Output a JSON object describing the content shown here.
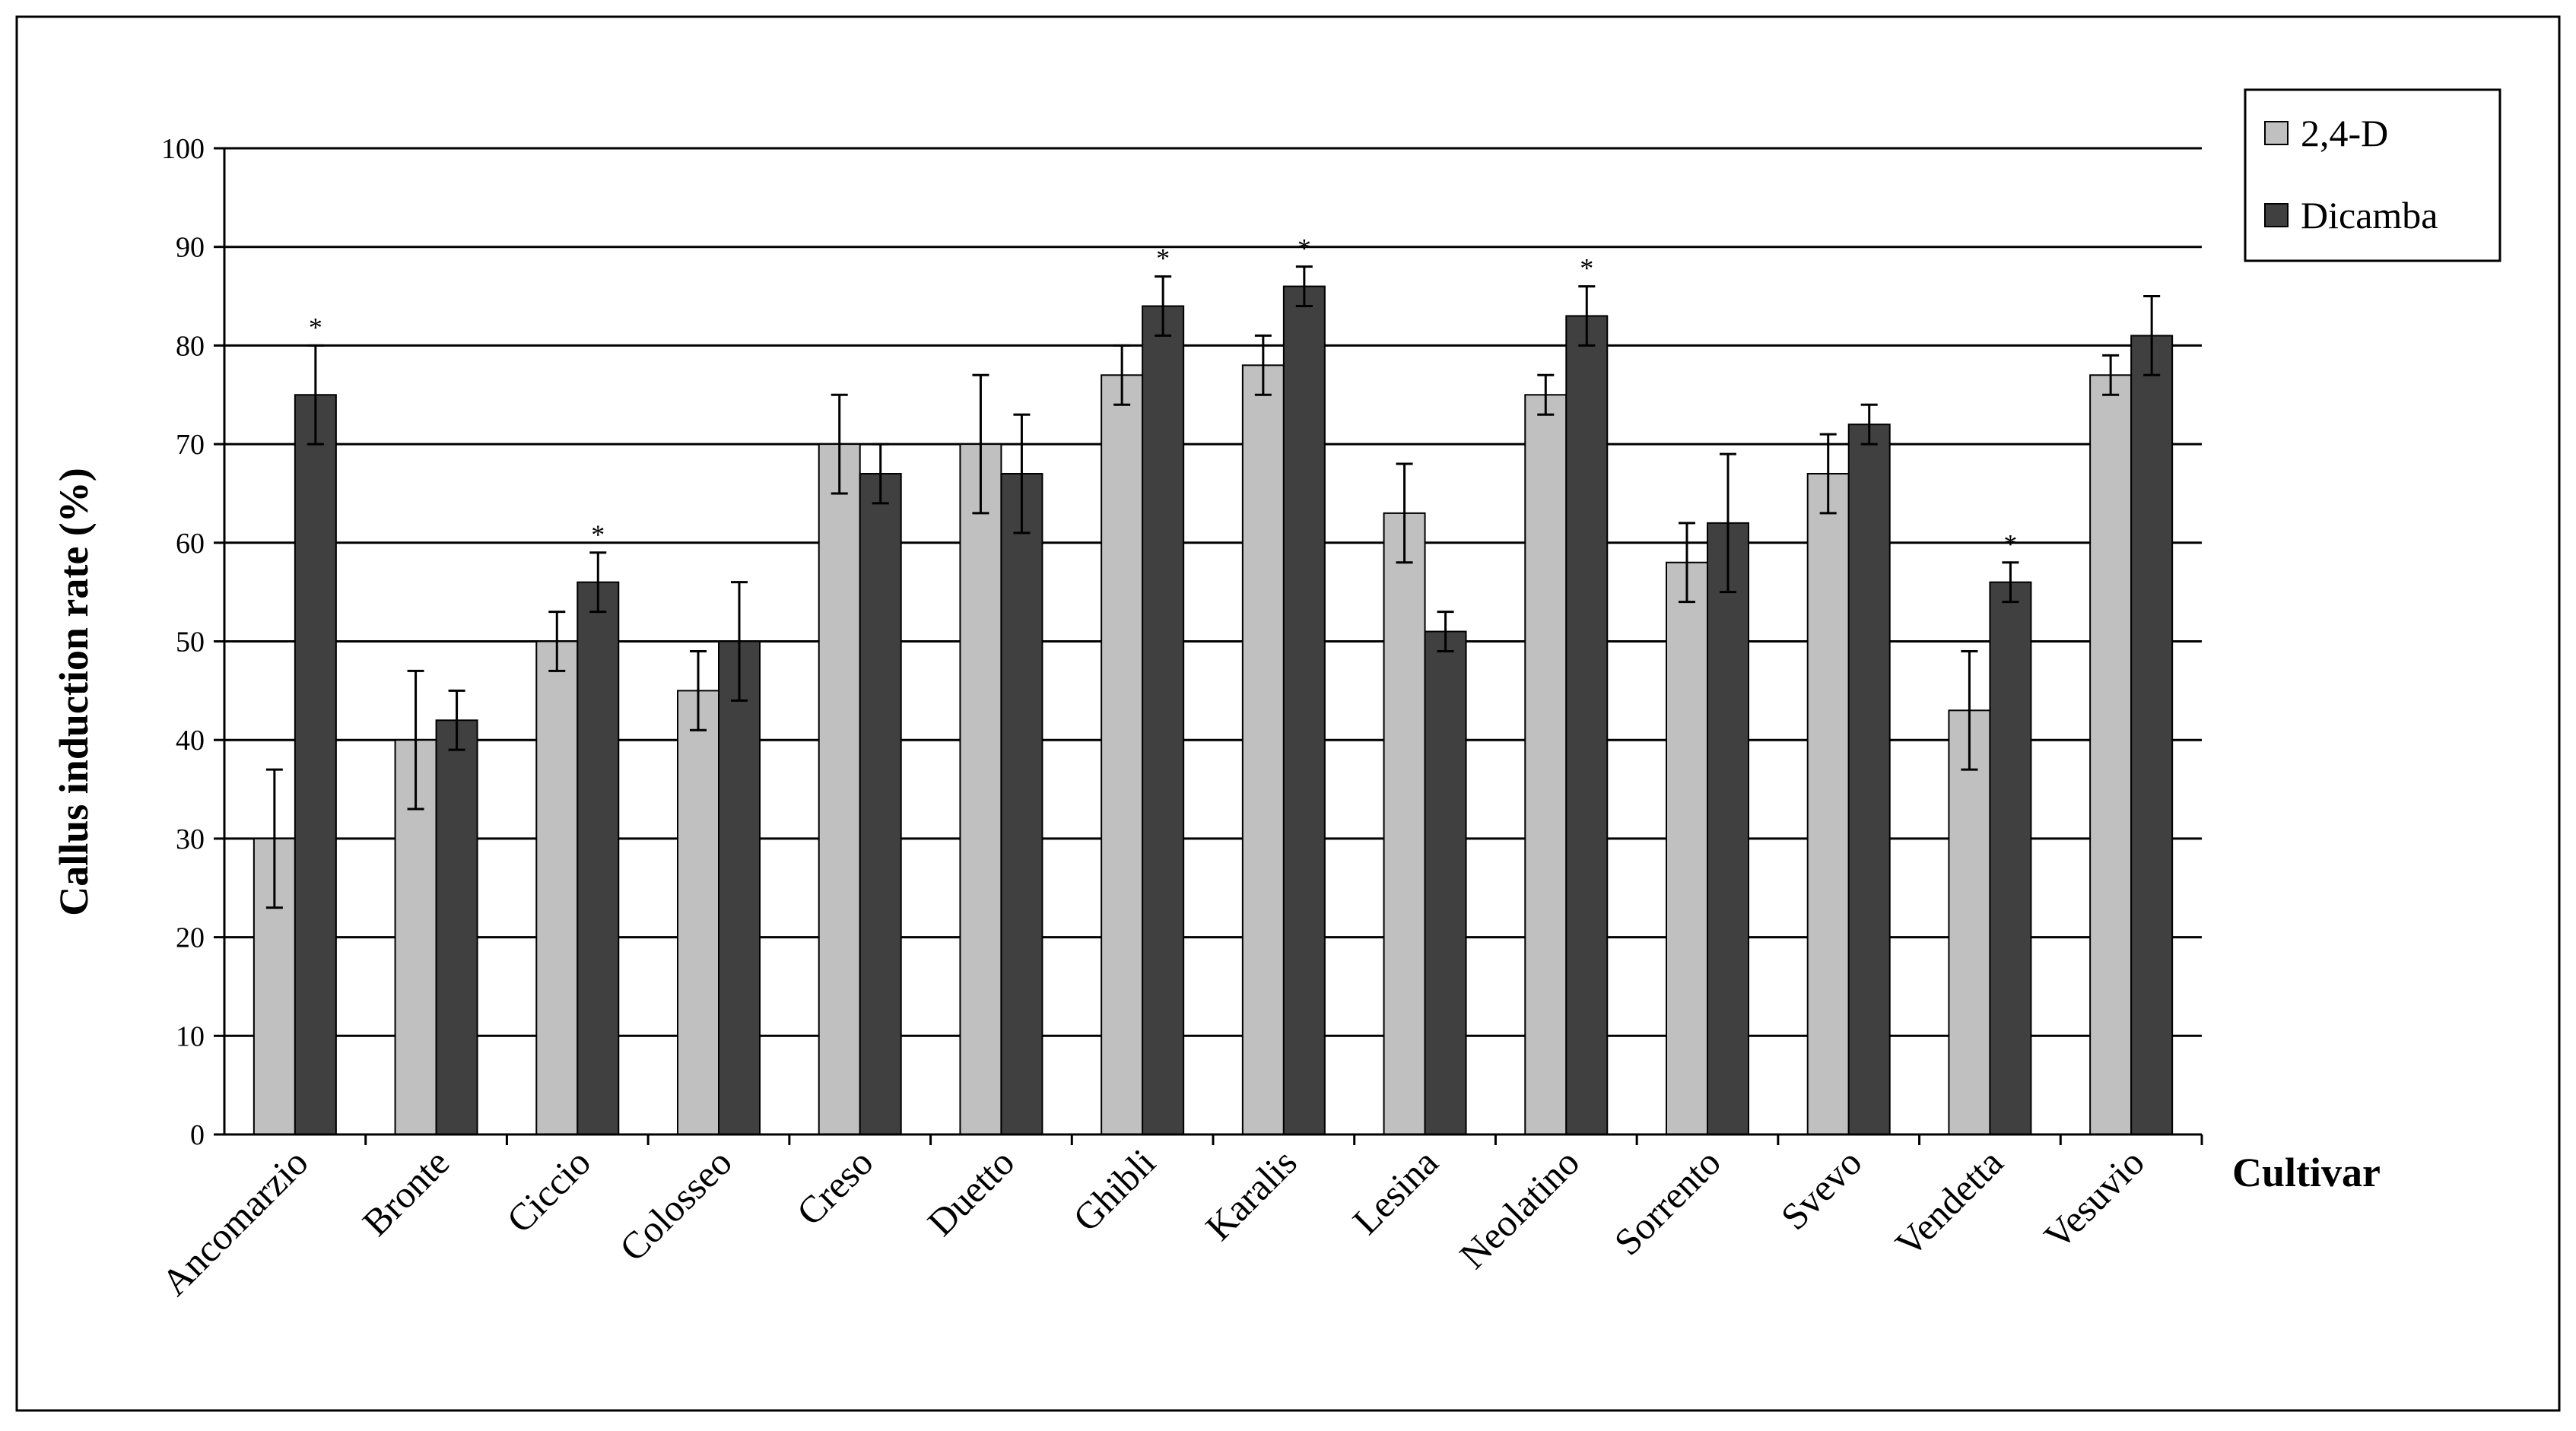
{
  "chart_data": {
    "type": "bar",
    "ylabel": "Callus induction rate (%)",
    "xlabel": "Cultivar",
    "ylim": [
      0,
      100
    ],
    "yticks": [
      "0",
      "10",
      "20",
      "30",
      "40",
      "50",
      "60",
      "70",
      "80",
      "90",
      "100"
    ],
    "grid": true,
    "legend_position": "top-right",
    "categories": [
      "Ancomarzio",
      "Bronte",
      "Ciccio",
      "Colosseo",
      "Creso",
      "Duetto",
      "Ghibli",
      "Karalis",
      "Lesina",
      "Neolatino",
      "Sorrento",
      "Svevo",
      "Vendetta",
      "Vesuvio"
    ],
    "series": [
      {
        "name": "2,4-D",
        "color": "#c0c0c0",
        "values": [
          30,
          40,
          50,
          45,
          70,
          70,
          77,
          78,
          63,
          75,
          58,
          67,
          43,
          77
        ],
        "errors": [
          7,
          7,
          3,
          4,
          5,
          7,
          3,
          3,
          5,
          2,
          4,
          4,
          6,
          2
        ]
      },
      {
        "name": "Dicamba",
        "color": "#404040",
        "values": [
          75,
          42,
          56,
          50,
          67,
          67,
          84,
          86,
          51,
          83,
          62,
          72,
          56,
          81
        ],
        "errors": [
          5,
          3,
          3,
          6,
          3,
          6,
          3,
          2,
          2,
          3,
          7,
          2,
          2,
          4
        ]
      }
    ],
    "significance_marker": "*",
    "significant": [
      true,
      false,
      true,
      false,
      false,
      false,
      true,
      true,
      false,
      true,
      false,
      false,
      true,
      false
    ]
  }
}
